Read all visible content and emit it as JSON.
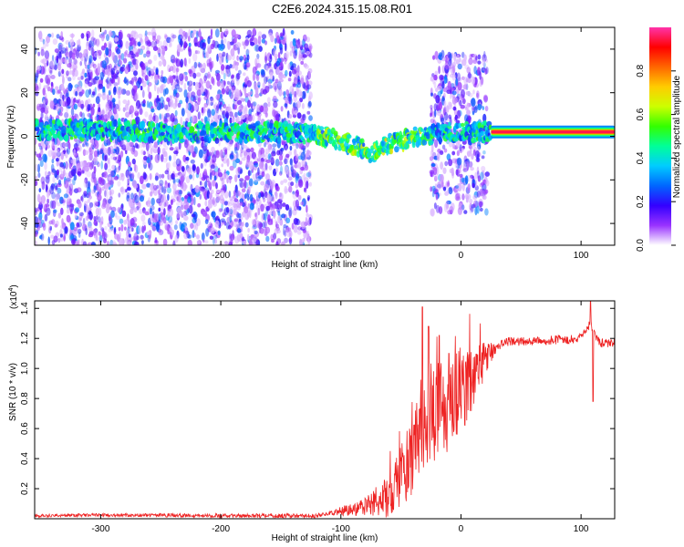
{
  "title": "C2E6.2024.315.15.08.R01",
  "chart_data": [
    {
      "type": "heatmap",
      "xlabel": "Height of straight line (km)",
      "ylabel": "Frequency (Hz)",
      "xlim": [
        -355,
        128
      ],
      "ylim": [
        -50,
        50
      ],
      "xticks": [
        -300,
        -200,
        -100,
        0,
        100
      ],
      "yticks": [
        -40,
        -20,
        0,
        20,
        40
      ],
      "xtick_labels": [
        "-300",
        "-200",
        "-100",
        "0",
        "100"
      ],
      "ytick_labels": [
        "-40",
        "-20",
        "0",
        "20",
        "40"
      ],
      "colorbar": {
        "label": "Normalized spectral amplitude",
        "range": [
          0,
          1
        ],
        "ticks": [
          0.0,
          0.2,
          0.4,
          0.6,
          0.8
        ],
        "tick_labels": [
          "0.0",
          "0.2",
          "0.4",
          "0.6",
          "0.8"
        ],
        "colormap": [
          "#ffffff",
          "#9933ff",
          "#3300ff",
          "#0066ff",
          "#00ccff",
          "#00ff99",
          "#33ff00",
          "#ccff00",
          "#ffcc00",
          "#ff6600",
          "#ff0000",
          "#ff33aa"
        ]
      },
      "regions": [
        {
          "name": "noise",
          "x": [
            -355,
            -125
          ],
          "y": [
            -50,
            48
          ],
          "level": 0.12
        },
        {
          "name": "noise",
          "x": [
            -25,
            22
          ],
          "y": [
            -35,
            38
          ],
          "level": 0.15
        }
      ],
      "ridge": [
        {
          "x": -350,
          "y": 3
        },
        {
          "x": -300,
          "y": 3
        },
        {
          "x": -250,
          "y": 2
        },
        {
          "x": -200,
          "y": 2
        },
        {
          "x": -150,
          "y": 2
        },
        {
          "x": -120,
          "y": 1
        },
        {
          "x": -100,
          "y": -2
        },
        {
          "x": -85,
          "y": -5
        },
        {
          "x": -75,
          "y": -9
        },
        {
          "x": -65,
          "y": -4
        },
        {
          "x": -50,
          "y": -2
        },
        {
          "x": -35,
          "y": 0
        },
        {
          "x": -20,
          "y": 1
        },
        {
          "x": 0,
          "y": 2
        },
        {
          "x": 20,
          "y": 2
        },
        {
          "x": 60,
          "y": 2
        },
        {
          "x": 100,
          "y": 3
        },
        {
          "x": 128,
          "y": 2
        }
      ],
      "strong_band": {
        "x": [
          25,
          128
        ],
        "y": 2,
        "level": 0.95
      }
    },
    {
      "type": "line",
      "xlabel": "Height of straight line (km)",
      "ylabel": "SNR (10 * v/v)",
      "y_multiplier": "(x10",
      "y_multiplier_exp": "4",
      "y_multiplier_close": ")",
      "xlim": [
        -355,
        128
      ],
      "ylim": [
        0,
        1.45
      ],
      "xticks": [
        -300,
        -200,
        -100,
        0,
        100
      ],
      "yticks": [
        0.2,
        0.4,
        0.6,
        0.8,
        1.0,
        1.2,
        1.4
      ],
      "xtick_labels": [
        "-300",
        "-200",
        "-100",
        "0",
        "100"
      ],
      "ytick_labels": [
        "0.2",
        "0.4",
        "0.6",
        "0.8",
        "1.0",
        "1.2",
        "1.4"
      ],
      "color": "#ee2222",
      "envelope": [
        {
          "x": -355,
          "y": 0.02
        },
        {
          "x": -300,
          "y": 0.025
        },
        {
          "x": -200,
          "y": 0.02
        },
        {
          "x": -120,
          "y": 0.02
        },
        {
          "x": -100,
          "y": 0.05
        },
        {
          "x": -80,
          "y": 0.08
        },
        {
          "x": -60,
          "y": 0.15
        },
        {
          "x": -45,
          "y": 0.35
        },
        {
          "x": -35,
          "y": 0.55
        },
        {
          "x": -20,
          "y": 0.7
        },
        {
          "x": -5,
          "y": 0.8
        },
        {
          "x": 10,
          "y": 0.95
        },
        {
          "x": 20,
          "y": 1.05
        },
        {
          "x": 30,
          "y": 1.15
        },
        {
          "x": 40,
          "y": 1.18
        },
        {
          "x": 60,
          "y": 1.18
        },
        {
          "x": 80,
          "y": 1.19
        },
        {
          "x": 100,
          "y": 1.2
        },
        {
          "x": 108,
          "y": 1.3
        },
        {
          "x": 115,
          "y": 1.17
        },
        {
          "x": 128,
          "y": 1.17
        }
      ],
      "noise": [
        {
          "x": -355,
          "a": 0.01
        },
        {
          "x": -110,
          "a": 0.015
        },
        {
          "x": -80,
          "a": 0.06
        },
        {
          "x": -50,
          "a": 0.2
        },
        {
          "x": -30,
          "a": 0.35
        },
        {
          "x": 0,
          "a": 0.3
        },
        {
          "x": 20,
          "a": 0.12
        },
        {
          "x": 30,
          "a": 0.03
        },
        {
          "x": 128,
          "a": 0.03
        }
      ],
      "spikes": [
        {
          "x": -32,
          "y": 1.41
        },
        {
          "x": -27,
          "y": 1.28
        },
        {
          "x": -18,
          "y": 1.22
        },
        {
          "x": -10,
          "y": 1.1
        },
        {
          "x": 108,
          "y": 1.45
        },
        {
          "x": 110,
          "y": 0.78
        }
      ]
    }
  ]
}
